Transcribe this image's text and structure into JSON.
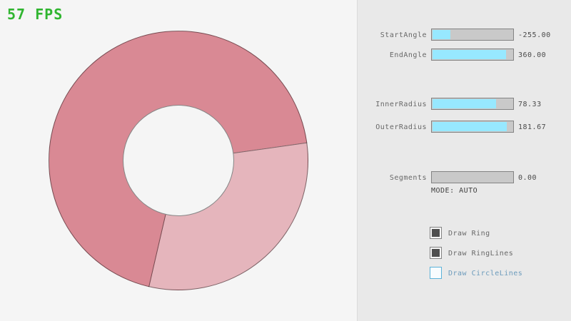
{
  "fps": "57 FPS",
  "colors": {
    "background": "#f5f5f5",
    "panel_bg": "#e9e9e9",
    "fps_green": "#30b530",
    "ring_dark": "#d98994",
    "ring_light": "#e5b5bc",
    "ring_line": "rgba(0,0,0,0.45)",
    "slider_track": "#c9c9c9",
    "slider_fill": "#97e8ff",
    "slider_border": "#838383",
    "focus_blue_border": "#5bb2d9",
    "focus_blue_text": "#6c9bbc"
  },
  "ring": {
    "start_angle": -255.0,
    "end_angle": 360.0,
    "inner_radius": 78.33,
    "outer_radius": 181.67,
    "segments": 0,
    "mode": "AUTO"
  },
  "sliders": [
    {
      "label": "StartAngle",
      "value": "-255.00",
      "fill_pct": 21.7
    },
    {
      "label": "EndAngle",
      "value": "360.00",
      "fill_pct": 90.0
    },
    {
      "label": "InnerRadius",
      "value": "78.33",
      "fill_pct": 78.3
    },
    {
      "label": "OuterRadius",
      "value": "181.67",
      "fill_pct": 90.8
    },
    {
      "label": "Segments",
      "value": "0.00",
      "fill_pct": 0
    }
  ],
  "mode_label": "MODE: AUTO",
  "checkboxes": [
    {
      "label": "Draw Ring",
      "checked": true
    },
    {
      "label": "Draw RingLines",
      "checked": true
    },
    {
      "label": "Draw CircleLines",
      "checked": false
    }
  ]
}
